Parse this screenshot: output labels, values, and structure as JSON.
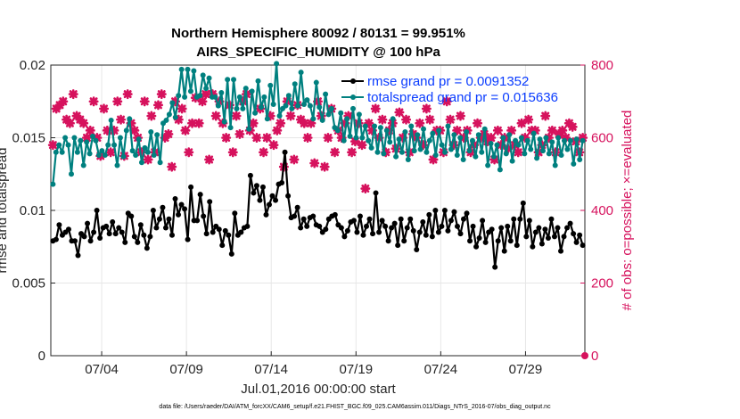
{
  "chart_data": {
    "type": "line",
    "title": "Northern Hemisphere 80092 / 80131 = 99.951%",
    "subtitle": "AIRS_SPECIFIC_HUMIDITY @ 100 hPa",
    "xlabel": "Jul.01,2016 00:00:00 start",
    "ylabel": "rmse and totalspread",
    "ylabel_right": "# of obs: o=possible; ×=evaluated",
    "footnote": "data file: /Users/raeder/DAI/ATM_forcXX/CAM6_setup/f.e21.FHIST_BGC.f09_025.CAM6assim.011/Diags_NTrS_2016-07/obs_diag_output.nc",
    "x_range_days": [
      0,
      31.5
    ],
    "ylim": [
      0,
      0.02
    ],
    "ylim_right": [
      0,
      800
    ],
    "x_tick_labels": [
      "07/04",
      "07/09",
      "07/14",
      "07/19",
      "07/24",
      "07/29"
    ],
    "y_ticks": [
      "0",
      "0.005",
      "0.01",
      "0.015",
      "0.02"
    ],
    "y_ticks_right": [
      "0",
      "200",
      "400",
      "600",
      "800"
    ],
    "grid": true,
    "legend_position": "top-right",
    "series": [
      {
        "name": "rmse grand pr = 0.0091352",
        "color": "#000000",
        "marker": "circle",
        "values": [
          0.0079,
          0.008,
          0.009,
          0.0083,
          0.0085,
          0.0087,
          0.0079,
          0.0079,
          0.0069,
          0.0084,
          0.0082,
          0.0091,
          0.0079,
          0.0085,
          0.01,
          0.0081,
          0.0088,
          0.0089,
          0.0084,
          0.0092,
          0.0084,
          0.0088,
          0.0085,
          0.0078,
          0.0098,
          0.0096,
          0.0082,
          0.0078,
          0.009,
          0.0083,
          0.0074,
          0.0082,
          0.01,
          0.0088,
          0.0094,
          0.0102,
          0.0088,
          0.0094,
          0.0083,
          0.0108,
          0.0097,
          0.0104,
          0.0101,
          0.008,
          0.0116,
          0.0093,
          0.0093,
          0.0111,
          0.0096,
          0.0084,
          0.0106,
          0.0085,
          0.0089,
          0.0087,
          0.0076,
          0.0086,
          0.0083,
          0.007,
          0.0098,
          0.0083,
          0.0085,
          0.0088,
          0.0089,
          0.0124,
          0.0112,
          0.0117,
          0.0107,
          0.0116,
          0.0097,
          0.0104,
          0.011,
          0.0107,
          0.0118,
          0.0119,
          0.014,
          0.011,
          0.0095,
          0.0096,
          0.0102,
          0.0088,
          0.0094,
          0.0089,
          0.0095,
          0.0096,
          0.009,
          0.0089,
          0.0085,
          0.0087,
          0.0094,
          0.0096,
          0.0097,
          0.009,
          0.0088,
          0.0082,
          0.0086,
          0.0092,
          0.0093,
          0.0085,
          0.0096,
          0.0083,
          0.0089,
          0.0094,
          0.0084,
          0.0112,
          0.0085,
          0.0093,
          0.0089,
          0.0079,
          0.0088,
          0.0091,
          0.0076,
          0.0094,
          0.0079,
          0.0088,
          0.0094,
          0.0086,
          0.0073,
          0.0085,
          0.0092,
          0.0083,
          0.0097,
          0.0082,
          0.01,
          0.0085,
          0.0089,
          0.01,
          0.0086,
          0.0093,
          0.0099,
          0.0089,
          0.0084,
          0.0094,
          0.0098,
          0.0079,
          0.0089,
          0.0075,
          0.0081,
          0.0093,
          0.0078,
          0.0085,
          0.0087,
          0.0061,
          0.0079,
          0.0088,
          0.0072,
          0.0089,
          0.0079,
          0.0094,
          0.0076,
          0.0094,
          0.0105,
          0.0082,
          0.0093,
          0.0075,
          0.0085,
          0.0088,
          0.0077,
          0.0087,
          0.0081,
          0.0094,
          0.0082,
          0.0088,
          0.0072,
          0.0082,
          0.0088,
          0.0091,
          0.0084,
          0.0078,
          0.0083,
          0.0076
        ]
      },
      {
        "name": "totalspread grand pr = 0.015636",
        "color": "#00807f",
        "marker": "circle",
        "values": [
          0.0118,
          0.014,
          0.0145,
          0.014,
          0.015,
          0.0145,
          0.0125,
          0.015,
          0.014,
          0.0148,
          0.0131,
          0.0147,
          0.0139,
          0.0151,
          0.0148,
          0.0138,
          0.0141,
          0.0138,
          0.0145,
          0.0162,
          0.0145,
          0.0131,
          0.015,
          0.0137,
          0.0155,
          0.0163,
          0.0141,
          0.0138,
          0.0149,
          0.0133,
          0.0143,
          0.014,
          0.0154,
          0.0138,
          0.0152,
          0.0133,
          0.016,
          0.0162,
          0.0166,
          0.0174,
          0.0164,
          0.0179,
          0.0197,
          0.0178,
          0.0197,
          0.0182,
          0.0196,
          0.0178,
          0.0179,
          0.0193,
          0.0184,
          0.0191,
          0.0178,
          0.0178,
          0.0172,
          0.0181,
          0.0161,
          0.019,
          0.0157,
          0.019,
          0.017,
          0.0178,
          0.017,
          0.0184,
          0.0156,
          0.0182,
          0.0167,
          0.0189,
          0.0171,
          0.0178,
          0.0163,
          0.0186,
          0.0173,
          0.0201,
          0.0165,
          0.017,
          0.0172,
          0.0179,
          0.017,
          0.0187,
          0.0172,
          0.0195,
          0.0173,
          0.0176,
          0.0172,
          0.0163,
          0.0188,
          0.0171,
          0.0162,
          0.018,
          0.0166,
          0.017,
          0.0157,
          0.0155,
          0.0167,
          0.0148,
          0.0163,
          0.0151,
          0.017,
          0.015,
          0.0166,
          0.015,
          0.0158,
          0.0148,
          0.0143,
          0.0158,
          0.014,
          0.0157,
          0.0139,
          0.0155,
          0.0147,
          0.0163,
          0.0137,
          0.0149,
          0.014,
          0.0154,
          0.0135,
          0.0158,
          0.0141,
          0.0152,
          0.0142,
          0.0156,
          0.014,
          0.0148,
          0.0153,
          0.0138,
          0.0155,
          0.0145,
          0.014,
          0.0158,
          0.0142,
          0.0152,
          0.0138,
          0.015,
          0.0135,
          0.0154,
          0.0141,
          0.0148,
          0.0137,
          0.0152,
          0.014,
          0.0156,
          0.0131,
          0.0146,
          0.0137,
          0.0145,
          0.0128,
          0.015,
          0.0139,
          0.0152,
          0.0134,
          0.0148,
          0.0145,
          0.015,
          0.0139,
          0.0148,
          0.0142,
          0.0153,
          0.0136,
          0.0149,
          0.0141,
          0.015,
          0.0139,
          0.0147,
          0.0131,
          0.015,
          0.0138,
          0.0148,
          0.0142,
          0.0148,
          0.0132,
          0.0149,
          0.0135,
          0.0148
        ]
      },
      {
        "name": "# of obs evaluated",
        "color": "#d6125d",
        "marker": "x",
        "axis": "right",
        "values": [
          580,
          680,
          690,
          700,
          650,
          640,
          720,
          660,
          650,
          640,
          600,
          620,
          700,
          600,
          550,
          680,
          620,
          560,
          620,
          700,
          650,
          550,
          720,
          640,
          620,
          600,
          560,
          700,
          540,
          660,
          560,
          690,
          720,
          600,
          610,
          520,
          700,
          650,
          680,
          620,
          560,
          640,
          710,
          640,
          700,
          720,
          540,
          720,
          660,
          700,
          640,
          600,
          690,
          560,
          660,
          610,
          700,
          720,
          620,
          640,
          600,
          680,
          560,
          600,
          660,
          580,
          620,
          640,
          520,
          700,
          660,
          540,
          690,
          650,
          640,
          600,
          640,
          530,
          700,
          660,
          520,
          600,
          680,
          560,
          620,
          600,
          640,
          660,
          560,
          590,
          640,
          580,
          460,
          640,
          620,
          680,
          600,
          650,
          560,
          620,
          640,
          570,
          670,
          600,
          650,
          560,
          610,
          600,
          640,
          580,
          680,
          650,
          540,
          620,
          620,
          560,
          700,
          650,
          580,
          620,
          660,
          600,
          620,
          560,
          580,
          640,
          600,
          610,
          590,
          600,
          540,
          620,
          580,
          600,
          570,
          620,
          580,
          560,
          640,
          600,
          650,
          620,
          620,
          560,
          580,
          660,
          600,
          620,
          560,
          610,
          620,
          600,
          640,
          630,
          590,
          560,
          600
        ]
      },
      {
        "name": "# of obs possible",
        "color": "#d6125d",
        "marker": "circle",
        "axis": "right",
        "values": [
          0
        ]
      }
    ]
  }
}
